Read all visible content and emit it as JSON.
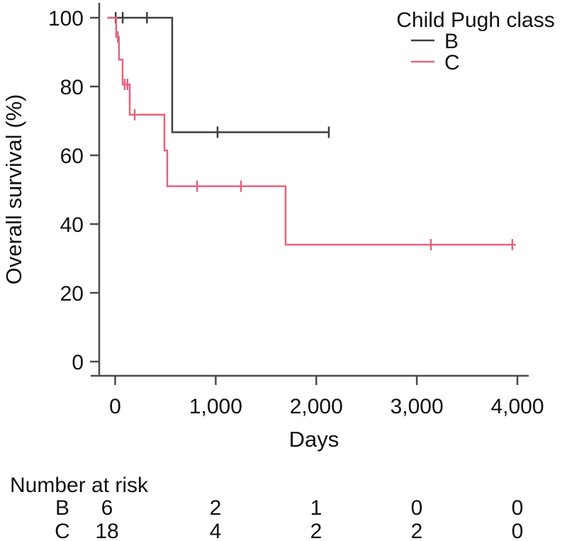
{
  "chart_data": {
    "type": "line",
    "subtype": "kaplan-meier-step",
    "title": "",
    "xlabel": "Days",
    "ylabel": "Overall survival (%)",
    "xlim": [
      0,
      4000
    ],
    "ylim": [
      0,
      100
    ],
    "x_ticks": [
      0,
      1000,
      2000,
      3000,
      4000
    ],
    "x_tick_labels": [
      "0",
      "1,000",
      "2,000",
      "3,000",
      "4,000"
    ],
    "y_ticks": [
      0,
      20,
      40,
      60,
      80,
      100
    ],
    "y_tick_labels": [
      "0",
      "20",
      "40",
      "60",
      "80",
      "100"
    ],
    "grid": "off",
    "legend": {
      "title": "Child Pugh class",
      "position": "top-right",
      "entries": [
        "B",
        "C"
      ]
    },
    "series": [
      {
        "name": "B",
        "color": "#3f3f3f",
        "steps": [
          [
            0,
            100
          ],
          [
            567,
            100
          ],
          [
            567,
            66.7
          ],
          [
            2130,
            66.7
          ]
        ],
        "censors": [
          [
            5,
            100
          ],
          [
            75,
            100
          ],
          [
            316,
            100
          ],
          [
            1018,
            66.7
          ],
          [
            2125,
            66.7
          ]
        ]
      },
      {
        "name": "C",
        "color": "#e7627e",
        "steps": [
          [
            0,
            100
          ],
          [
            10,
            100
          ],
          [
            10,
            94.4
          ],
          [
            38,
            94.4
          ],
          [
            38,
            87.8
          ],
          [
            74,
            87.8
          ],
          [
            74,
            80.6
          ],
          [
            145,
            80.6
          ],
          [
            145,
            71.8
          ],
          [
            490,
            71.8
          ],
          [
            490,
            61.4
          ],
          [
            518,
            61.4
          ],
          [
            518,
            51
          ],
          [
            1695,
            51
          ],
          [
            1695,
            34
          ],
          [
            3985,
            34
          ]
        ],
        "censors": [
          [
            27,
            94.4
          ],
          [
            95,
            80.6
          ],
          [
            122,
            80.6
          ],
          [
            194,
            71.8
          ],
          [
            815,
            51
          ],
          [
            1251,
            51
          ],
          [
            3140,
            34
          ],
          [
            3950,
            34
          ]
        ]
      }
    ]
  },
  "risk_table": {
    "title": "Number at risk",
    "time_points": [
      "0",
      "1,000",
      "2,000",
      "3,000",
      "4,000"
    ],
    "rows": [
      {
        "label": "B",
        "counts": [
          "6",
          "2",
          "1",
          "0",
          "0"
        ]
      },
      {
        "label": "C",
        "counts": [
          "18",
          "4",
          "2",
          "2",
          "0"
        ]
      }
    ]
  },
  "colors": {
    "axis": "#4a4a4a",
    "text": "#111111",
    "series_B": "#3f3f3f",
    "series_C": "#e7627e",
    "background": "#ffffff"
  }
}
